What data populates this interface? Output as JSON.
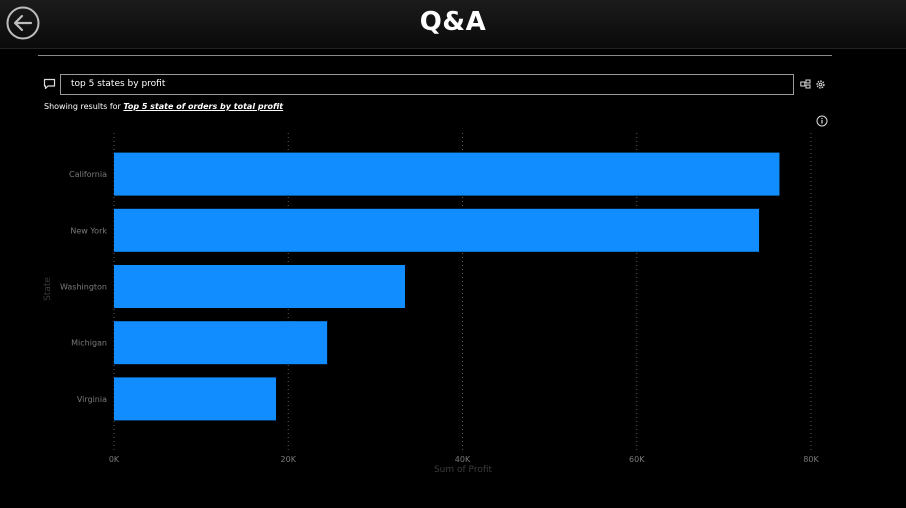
{
  "header": {
    "title": "Q&A",
    "back_icon": "arrow-left-circle-icon"
  },
  "qa": {
    "input_value": "top 5 states by profit",
    "showing_prefix": "Showing results for ",
    "showing_link": "Top 5 state of orders by total profit",
    "icons": [
      "chat-icon",
      "related-visuals-icon",
      "settings-icon",
      "info-icon"
    ]
  },
  "colors": {
    "bar": "#118DFF",
    "background": "#000000",
    "axis_text": "#7a7a7a",
    "axis_title": "#3c3c3c"
  },
  "chart_data": {
    "type": "bar",
    "orientation": "horizontal",
    "categories": [
      "California",
      "New York",
      "Washington",
      "Michigan",
      "Virginia"
    ],
    "values": [
      76381,
      74039,
      33403,
      24463,
      18598
    ],
    "xlabel": "Sum of Profit",
    "ylabel": "State",
    "xlim": [
      0,
      80000
    ],
    "xticks": [
      "0K",
      "20K",
      "40K",
      "60K",
      "80K"
    ],
    "grid": "vertical dotted"
  }
}
